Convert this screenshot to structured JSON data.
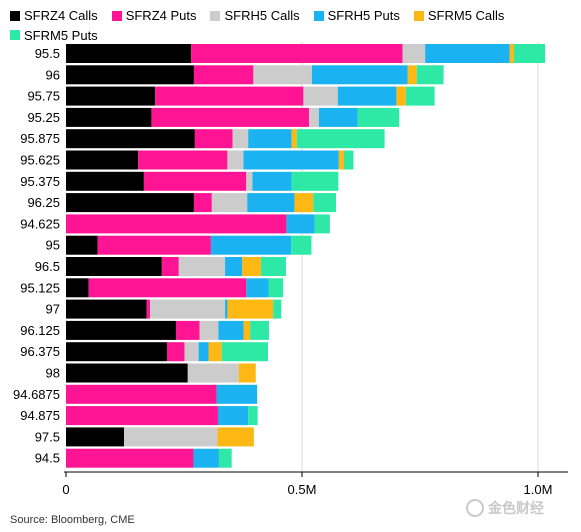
{
  "legend": [
    {
      "name": "SFRZ4 Calls",
      "color": "#000000"
    },
    {
      "name": "SFRZ4 Puts",
      "color": "#ff1493"
    },
    {
      "name": "SFRH5 Calls",
      "color": "#cccccc"
    },
    {
      "name": "SFRH5 Puts",
      "color": "#1ab2f0"
    },
    {
      "name": "SFRM5 Calls",
      "color": "#fdb813"
    },
    {
      "name": "SFRM5 Puts",
      "color": "#2ee8a6"
    }
  ],
  "source": "Source: Bloomberg, CME",
  "watermark": "金色财经",
  "chart_data": {
    "type": "bar",
    "orientation": "horizontal",
    "stacked": true,
    "categories": [
      "95.5",
      "96",
      "95.75",
      "95.25",
      "95.875",
      "95.625",
      "95.375",
      "96.25",
      "94.625",
      "95",
      "96.5",
      "95.125",
      "97",
      "96.125",
      "96.375",
      "98",
      "94.6875",
      "94.875",
      "97.5",
      "94.5"
    ],
    "xlim": [
      0,
      1100000
    ],
    "xticks": [
      {
        "value": 0,
        "label": "0"
      },
      {
        "value": 500000,
        "label": "0.5M"
      },
      {
        "value": 1000000,
        "label": "1.0M"
      }
    ],
    "grid": "vertical",
    "legend_position": "top",
    "series": [
      {
        "name": "SFRZ4 Calls",
        "color": "#000000",
        "values": [
          265000,
          271000,
          189000,
          181000,
          273000,
          153000,
          165000,
          271000,
          0,
          67000,
          203000,
          48000,
          171000,
          233000,
          214000,
          258000,
          0,
          0,
          123000,
          0
        ]
      },
      {
        "name": "SFRZ4 Puts",
        "color": "#ff1493",
        "values": [
          448000,
          126000,
          314000,
          334000,
          80000,
          189000,
          217000,
          38000,
          467000,
          240000,
          36000,
          334000,
          7000,
          50000,
          37000,
          0,
          319000,
          322000,
          0,
          270000
        ]
      },
      {
        "name": "SFRH5 Calls",
        "color": "#cccccc",
        "values": [
          48000,
          124000,
          73000,
          21000,
          33000,
          34000,
          13000,
          75000,
          0,
          0,
          98000,
          0,
          159000,
          40000,
          30000,
          108000,
          0,
          0,
          198000,
          0
        ]
      },
      {
        "name": "SFRH5 Puts",
        "color": "#1ab2f0",
        "values": [
          179000,
          203000,
          124000,
          82000,
          92000,
          202000,
          83000,
          100000,
          60000,
          170000,
          36000,
          47000,
          5000,
          53000,
          21000,
          0,
          86000,
          64000,
          0,
          54000
        ]
      },
      {
        "name": "SFRM5 Calls",
        "color": "#fdb813",
        "values": [
          9000,
          19000,
          20000,
          0,
          11000,
          11000,
          0,
          40000,
          0,
          0,
          40000,
          0,
          97000,
          14000,
          28000,
          36000,
          0,
          0,
          77000,
          0
        ]
      },
      {
        "name": "SFRM5 Puts",
        "color": "#2ee8a6",
        "values": [
          66000,
          57000,
          61000,
          88000,
          186000,
          20000,
          99000,
          48000,
          32000,
          43000,
          53000,
          31000,
          17000,
          40000,
          98000,
          0,
          0,
          20000,
          0,
          27000
        ]
      }
    ]
  }
}
